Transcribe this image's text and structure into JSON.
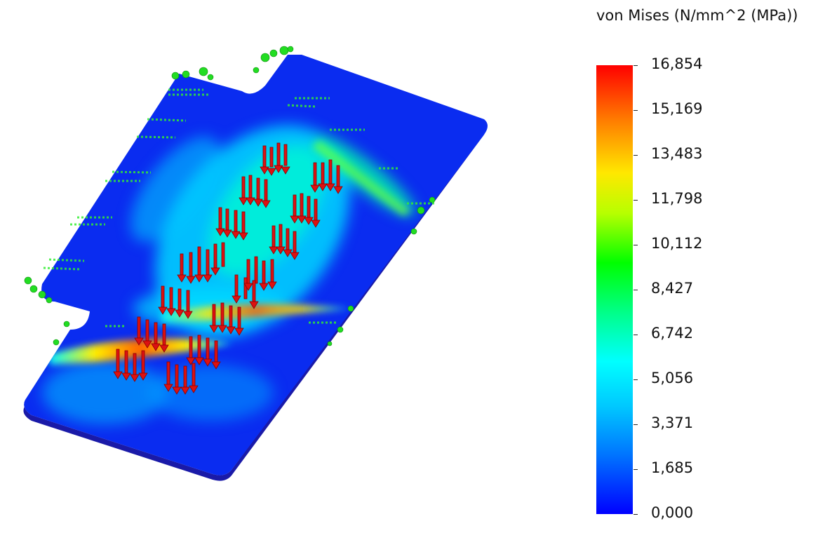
{
  "legend": {
    "title": "von Mises (N/mm^2 (MPa))",
    "ticks": [
      "16,854",
      "15,169",
      "13,483",
      "11,798",
      "10,112",
      "8,427",
      "6,742",
      "5,056",
      "3,371",
      "1,685",
      "0,000"
    ],
    "max_value": 16.854,
    "min_value": 0.0
  },
  "colors": {
    "max": "#ff0000",
    "mid": "#00ff00",
    "min": "#0000ff",
    "load_arrows": "#dd1111",
    "fixtures": "#22dd22"
  }
}
